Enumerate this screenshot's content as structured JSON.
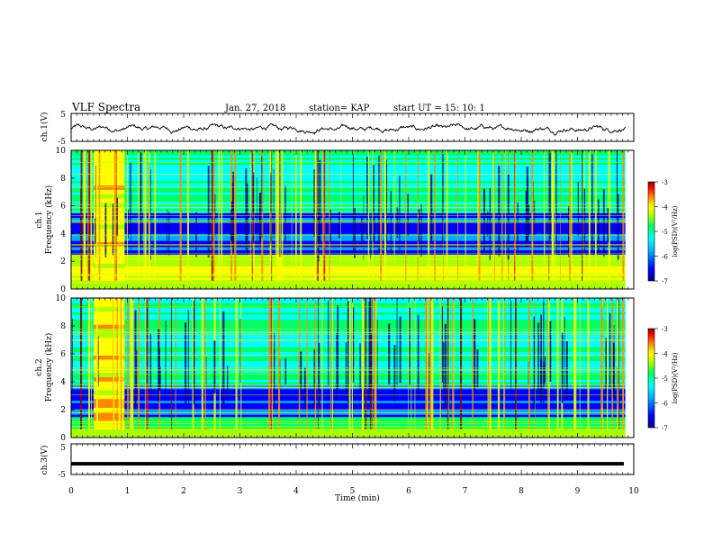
{
  "header": {
    "title": "VLF Spectra",
    "date": "Jan. 27, 2018",
    "station": "station= KAP",
    "start": "start  UT =  15: 10: 1"
  },
  "colors": {
    "colormap": [
      "#00008c",
      "#0000ff",
      "#00aaff",
      "#00ffff",
      "#00ff66",
      "#aaff00",
      "#ffff00",
      "#ff8800",
      "#ff0000",
      "#8b0000"
    ],
    "trace": "#000000"
  },
  "chart_data": [
    {
      "type": "line",
      "panel": "ch1-waveform",
      "ylabel": "ch.1(V)",
      "ylim": [
        -5,
        5
      ],
      "yticks": [
        "5",
        "-5"
      ],
      "xlim": [
        0,
        10
      ],
      "description_series": {
        "x_range_min": [
          0,
          9.85
        ],
        "mean_v": -0.4,
        "amplitude_v": 1.6
      }
    },
    {
      "type": "heatmap",
      "panel": "ch1-spectrogram",
      "ylabel": "ch.1\nFrequency (kHz)",
      "ylim": [
        0,
        10
      ],
      "yticks": [
        "0",
        "2",
        "4",
        "6",
        "8",
        "10"
      ],
      "xlim": [
        0,
        9.85
      ],
      "colorbar": {
        "label": "log(PSD)(V²/Hz)",
        "range": [
          -7,
          -3
        ],
        "ticks": [
          "-3",
          "-4",
          "-5",
          "-6",
          "-7"
        ]
      },
      "bright_block_min": [
        0.4,
        0.95
      ],
      "quiet_band_khz": [
        2.5,
        5.5
      ]
    },
    {
      "type": "heatmap",
      "panel": "ch2-spectrogram",
      "ylabel": "ch.2\nFrequency (kHz)",
      "ylim": [
        0,
        10
      ],
      "yticks": [
        "0",
        "2",
        "4",
        "6",
        "8",
        "10"
      ],
      "xlim": [
        0,
        9.85
      ],
      "colorbar": {
        "label": "log(PSD)(V²/Hz)",
        "range": [
          -7,
          -3
        ],
        "ticks": [
          "-3",
          "-4",
          "-5",
          "-6",
          "-7"
        ]
      },
      "bright_block_min": [
        0.4,
        0.95
      ],
      "quiet_band_khz": [
        1.5,
        3.8
      ]
    },
    {
      "type": "line",
      "panel": "ch3-waveform",
      "ylabel": "ch.3(V)",
      "ylim": [
        -5,
        5
      ],
      "yticks": [
        "5",
        "-5"
      ],
      "xlim": [
        0,
        10
      ],
      "constant_value_v": -1.5
    }
  ],
  "xaxis": {
    "label": "Time (min)",
    "ticks": [
      "0",
      "1",
      "2",
      "3",
      "4",
      "5",
      "6",
      "7",
      "8",
      "9",
      "10"
    ],
    "range": [
      0,
      10
    ]
  }
}
